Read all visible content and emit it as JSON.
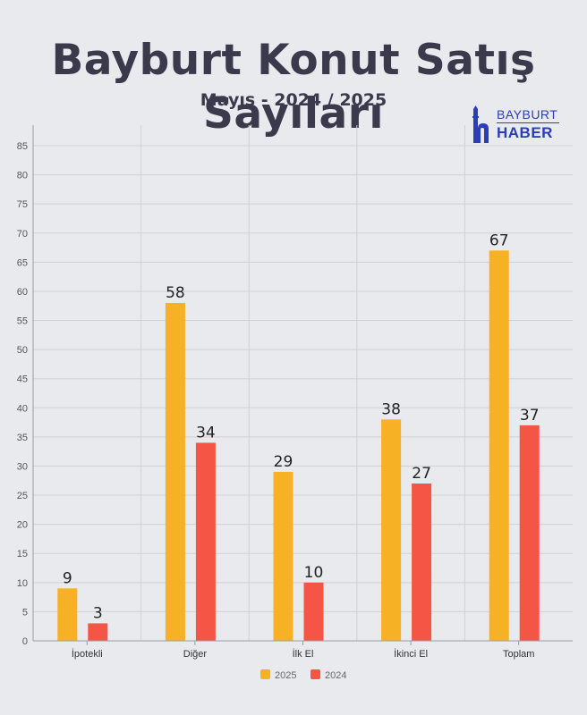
{
  "header": {
    "title": "Bayburt Konut Satış Sayıları",
    "subtitle": "Mayıs - 2024 / 2025"
  },
  "logo": {
    "top_text": "BAYBURT",
    "bottom_text": "HABER",
    "color": "#2b3db8",
    "icon": "minaret-h-logo-icon"
  },
  "chart_data": {
    "type": "bar",
    "categories": [
      "İpotekli",
      "Diğer",
      "İlk El",
      "İkinci El",
      "Toplam"
    ],
    "series": [
      {
        "name": "2025",
        "values": [
          9,
          58,
          29,
          38,
          67
        ],
        "color": "#f6b124"
      },
      {
        "name": "2024",
        "values": [
          3,
          34,
          10,
          27,
          37
        ],
        "color": "#f45545"
      }
    ],
    "ylim": [
      0,
      85
    ],
    "yticks": [
      0,
      5,
      10,
      15,
      20,
      25,
      30,
      35,
      40,
      45,
      50,
      55,
      60,
      65,
      70,
      75,
      80,
      85
    ],
    "grid": true,
    "legend_position": "bottom-center",
    "data_labels": true
  }
}
